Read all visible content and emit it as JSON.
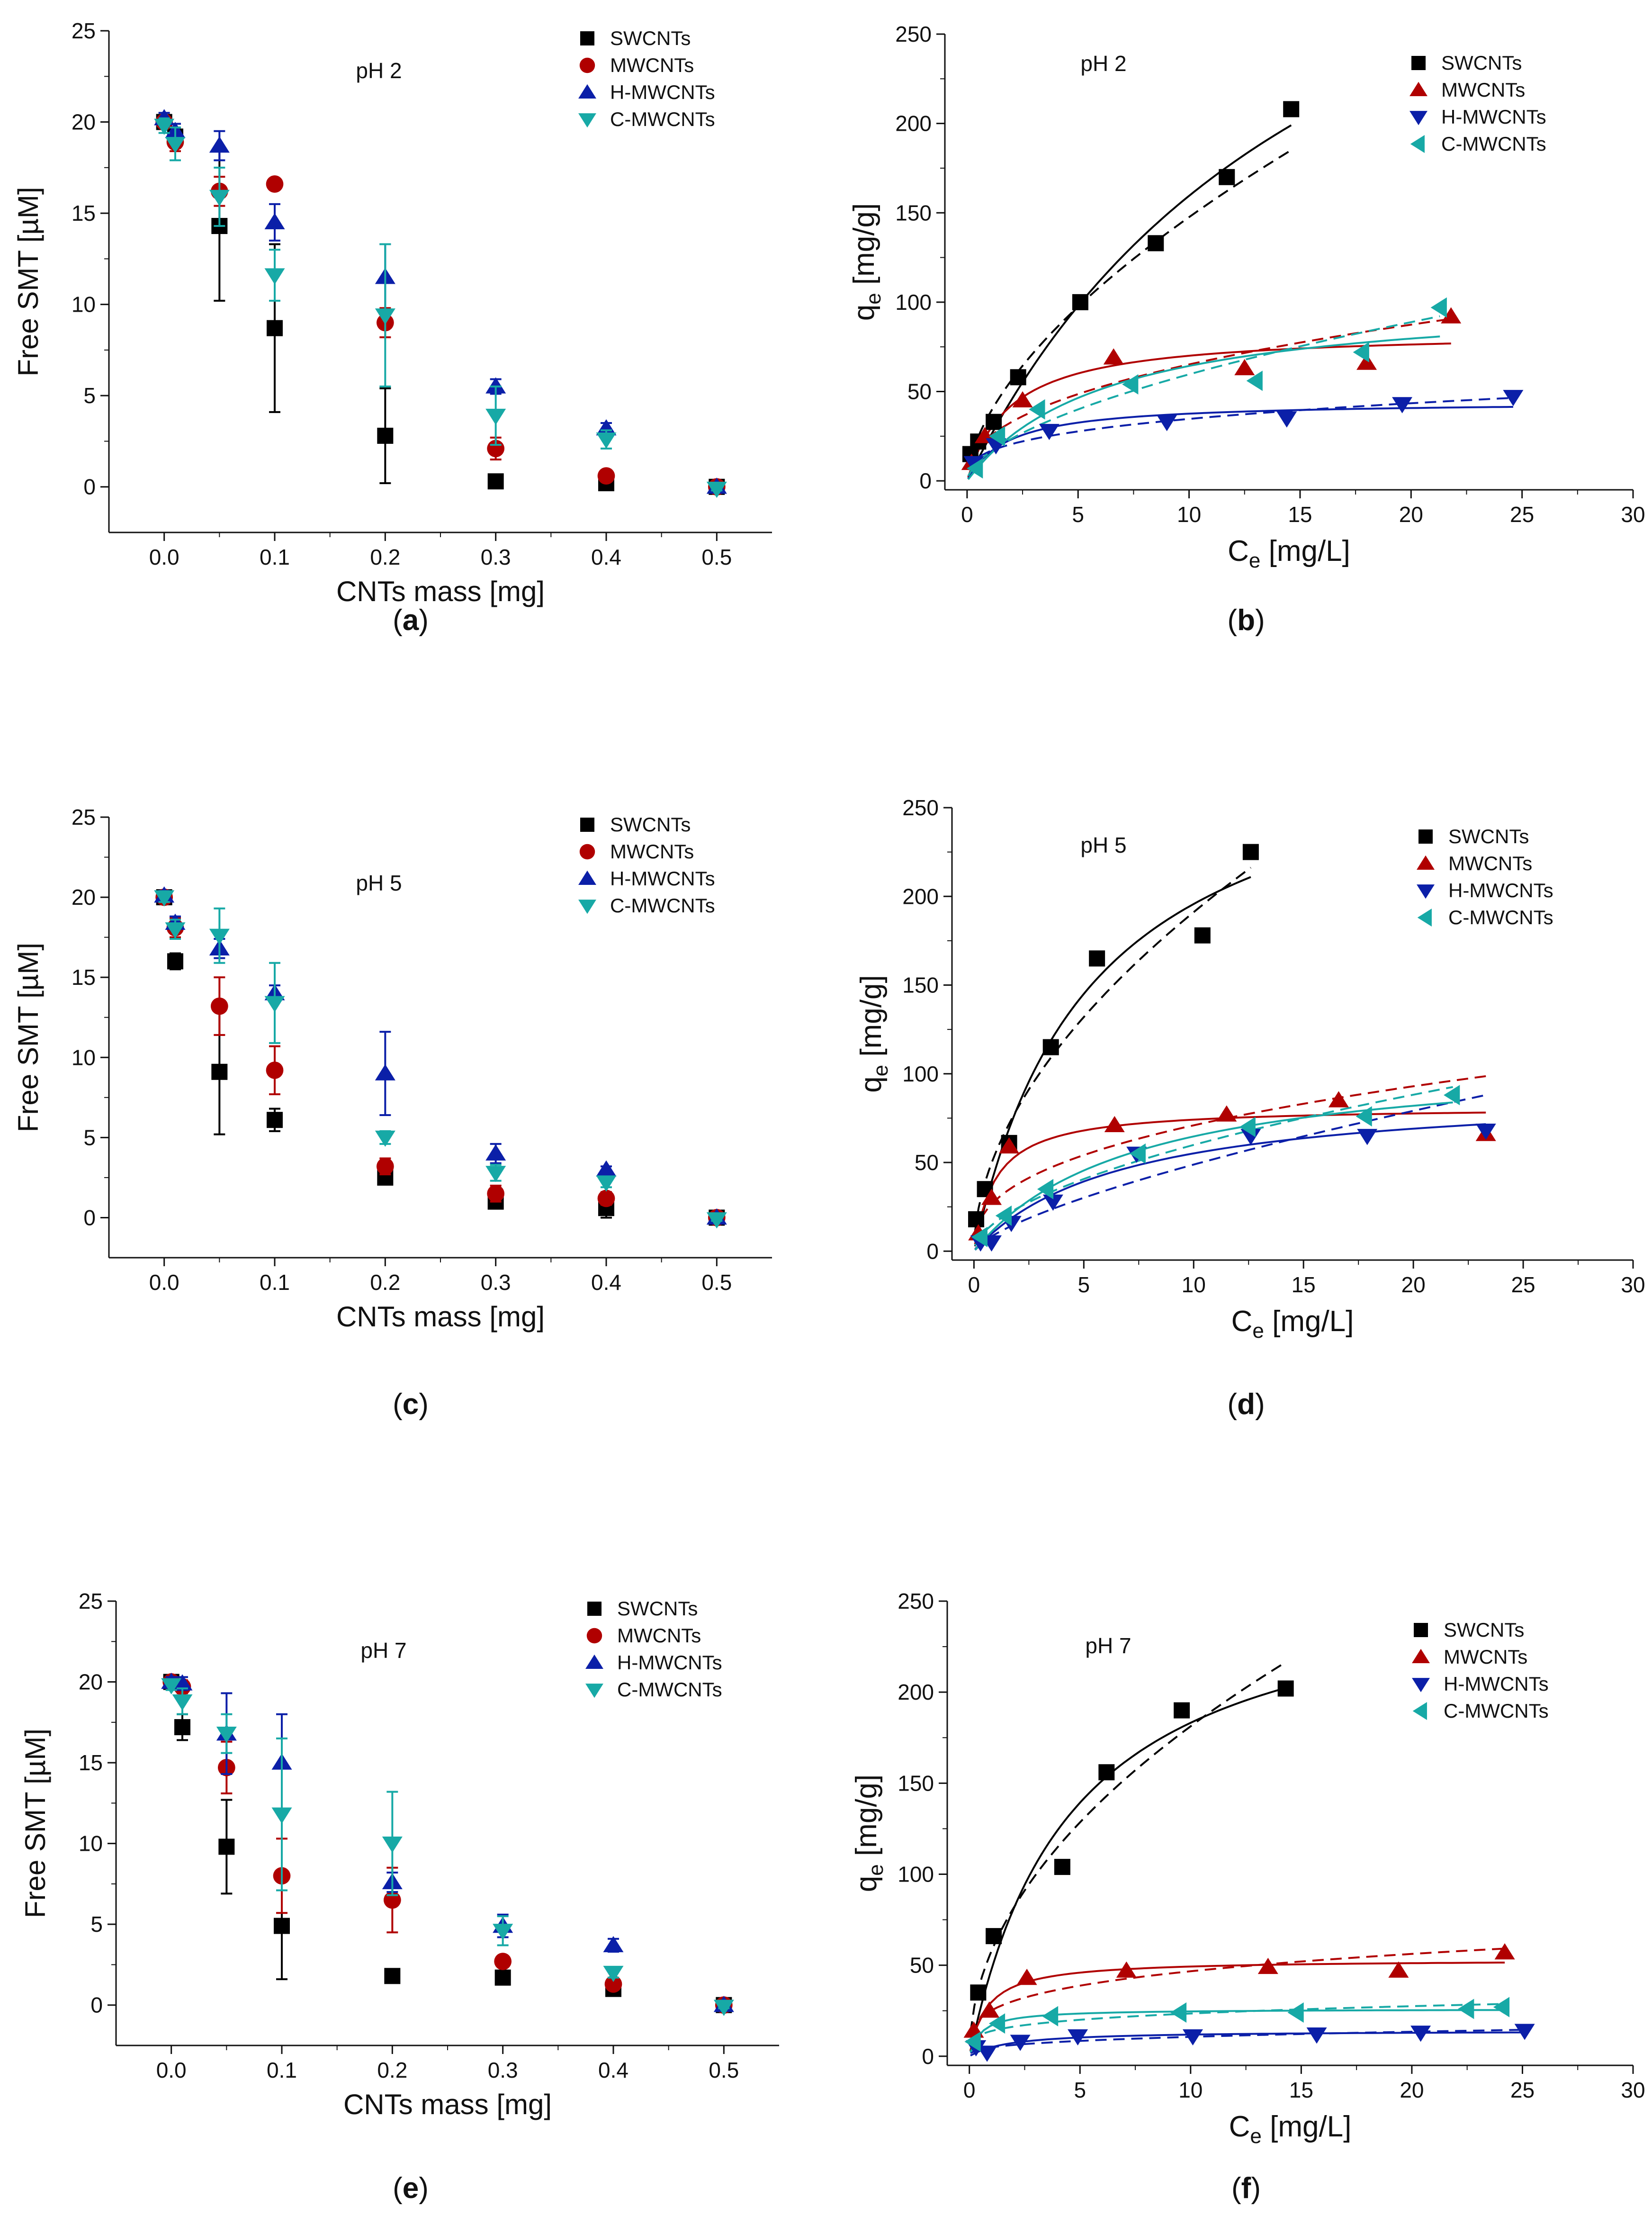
{
  "series_colors": {
    "SWCNTs": "#000000",
    "MWCNTs": "#b00000",
    "H-MWCNTs": "#0b1fa8",
    "C-MWCNTs": "#17a9a6"
  },
  "marker_shapes": {
    "SWCNTs": "square",
    "MWCNTs": "circle",
    "H-MWCNTs": "triangle-up",
    "C-MWCNTs": "triangle-down"
  },
  "marker_shapes_right": {
    "SWCNTs": "square",
    "MWCNTs": "triangle-up",
    "H-MWCNTs": "triangle-down",
    "C-MWCNTs": "triangle-left"
  },
  "chart_data": [
    {
      "panel": "a",
      "caption_letter": "a",
      "type": "scatter",
      "annotation": "pH 2",
      "xlabel": "CNTs mass [mg]",
      "ylabel": "Free SMT [µM]",
      "xlim": [
        -0.05,
        0.55
      ],
      "ylim": [
        -2.5,
        25
      ],
      "xticks": [
        0.0,
        0.1,
        0.2,
        0.3,
        0.4,
        0.5
      ],
      "xtick_labels": [
        "0.0",
        "0.1",
        "0.2",
        "0.3",
        "0.4",
        "0.5"
      ],
      "yticks": [
        0,
        5,
        10,
        15,
        20,
        25
      ],
      "ytick_labels": [
        "0",
        "5",
        "10",
        "15",
        "20",
        "25"
      ],
      "legend": [
        "SWCNTs",
        "MWCNTs",
        "H-MWCNTs",
        "C-MWCNTs"
      ],
      "series": [
        {
          "name": "SWCNTs",
          "x": [
            0,
            0.01,
            0.05,
            0.1,
            0.2,
            0.3,
            0.4,
            0.5
          ],
          "y": [
            20.0,
            19.2,
            14.3,
            8.7,
            2.8,
            0.3,
            0.2,
            0.0
          ],
          "err": [
            0.3,
            0.5,
            4.1,
            4.6,
            2.6,
            0.2,
            0.2,
            0.1
          ]
        },
        {
          "name": "MWCNTs",
          "x": [
            0,
            0.01,
            0.05,
            0.1,
            0.2,
            0.3,
            0.4,
            0.5
          ],
          "y": [
            20.0,
            18.9,
            16.2,
            16.6,
            9.0,
            2.1,
            0.6,
            0.0
          ],
          "err": [
            0.3,
            0.5,
            0.8,
            0.3,
            0.8,
            0.6,
            0.2,
            0.1
          ]
        },
        {
          "name": "H-MWCNTs",
          "x": [
            0,
            0.01,
            0.05,
            0.1,
            0.2,
            0.3,
            0.4,
            0.5
          ],
          "y": [
            20.2,
            19.5,
            18.7,
            14.5,
            11.5,
            5.5,
            3.2,
            0.0
          ],
          "err": [
            0.3,
            0.4,
            0.8,
            1.0,
            1.8,
            0.4,
            0.3,
            0.1
          ]
        },
        {
          "name": "C-MWCNTs",
          "x": [
            0,
            0.01,
            0.05,
            0.1,
            0.2,
            0.3,
            0.4,
            0.5
          ],
          "y": [
            19.8,
            18.8,
            15.9,
            11.6,
            9.4,
            3.9,
            2.6,
            -0.1
          ],
          "err": [
            0.4,
            0.9,
            1.6,
            1.4,
            3.9,
            1.6,
            0.5,
            0.1
          ]
        }
      ]
    },
    {
      "panel": "b",
      "caption_letter": "b",
      "type": "scatter",
      "annotation": "pH 2",
      "xlabel": "Ce [mg/L]",
      "ylabel": "qe [mg/g]",
      "xlim": [
        -1,
        30
      ],
      "ylim": [
        -5,
        250
      ],
      "xticks": [
        0,
        5,
        10,
        15,
        20,
        25,
        30
      ],
      "xtick_labels": [
        "0",
        "5",
        "10",
        "15",
        "20",
        "25",
        "30"
      ],
      "yticks": [
        0,
        50,
        100,
        150,
        200,
        250
      ],
      "ytick_labels": [
        "0",
        "50",
        "100",
        "150",
        "200",
        "250"
      ],
      "legend": [
        "SWCNTs",
        "MWCNTs",
        "H-MWCNTs",
        "C-MWCNTs"
      ],
      "series": [
        {
          "name": "SWCNTs",
          "x": [
            0.15,
            0.5,
            1.2,
            2.3,
            5.1,
            8.5,
            11.7,
            14.6
          ],
          "y": [
            15,
            22,
            33,
            58,
            100,
            133,
            170,
            208
          ],
          "solid_fit": [
            0,
            0.5,
            1,
            2,
            3,
            4,
            5,
            6,
            7,
            8,
            9,
            10,
            11,
            12,
            13,
            14,
            14.6
          ],
          "dashed_fit": [
            0,
            0.5,
            1,
            2,
            3,
            4,
            5,
            6,
            7,
            8,
            9,
            10,
            11,
            12,
            13,
            14,
            14.6
          ]
        },
        {
          "name": "MWCNTs",
          "x": [
            0.2,
            0.8,
            2.5,
            6.6,
            12.5,
            18.0,
            21.8
          ],
          "y": [
            10,
            25,
            45,
            69,
            63,
            66,
            92
          ]
        },
        {
          "name": "H-MWCNTs",
          "x": [
            0.3,
            1.3,
            3.7,
            9.0,
            14.4,
            19.6,
            24.6
          ],
          "y": [
            10,
            20,
            28,
            33,
            35,
            43,
            47
          ]
        },
        {
          "name": "C-MWCNTs",
          "x": [
            0.4,
            1.4,
            3.2,
            7.4,
            13.0,
            17.8,
            21.3
          ],
          "y": [
            7,
            25,
            40,
            54,
            56,
            72,
            97
          ]
        }
      ]
    },
    {
      "panel": "c",
      "caption_letter": "c",
      "type": "scatter",
      "annotation": "pH 5",
      "xlabel": "CNTs mass [mg]",
      "ylabel": "Free SMT [µM]",
      "xlim": [
        -0.05,
        0.55
      ],
      "ylim": [
        -2.5,
        25
      ],
      "xticks": [
        0.0,
        0.1,
        0.2,
        0.3,
        0.4,
        0.5
      ],
      "xtick_labels": [
        "0.0",
        "0.1",
        "0.2",
        "0.3",
        "0.4",
        "0.5"
      ],
      "yticks": [
        0,
        5,
        10,
        15,
        20,
        25
      ],
      "ytick_labels": [
        "0",
        "5",
        "10",
        "15",
        "20",
        "25"
      ],
      "legend": [
        "SWCNTs",
        "MWCNTs",
        "H-MWCNTs",
        "C-MWCNTs"
      ],
      "series": [
        {
          "name": "SWCNTs",
          "x": [
            0,
            0.01,
            0.05,
            0.1,
            0.2,
            0.3,
            0.4,
            0.5
          ],
          "y": [
            20.0,
            16.0,
            9.1,
            6.1,
            2.5,
            1.0,
            0.6,
            0.0
          ],
          "err": [
            0.3,
            0.5,
            3.9,
            0.7,
            0.3,
            0.2,
            0.6,
            0.1
          ]
        },
        {
          "name": "MWCNTs",
          "x": [
            0,
            0.01,
            0.05,
            0.1,
            0.2,
            0.3,
            0.4,
            0.5
          ],
          "y": [
            20.0,
            18.1,
            13.2,
            9.2,
            3.2,
            1.5,
            1.2,
            0.0
          ],
          "err": [
            0.3,
            0.6,
            1.8,
            1.5,
            0.5,
            0.5,
            0.4,
            0.1
          ]
        },
        {
          "name": "H-MWCNTs",
          "x": [
            0,
            0.01,
            0.05,
            0.1,
            0.2,
            0.3,
            0.4,
            0.5
          ],
          "y": [
            20.1,
            18.4,
            16.8,
            14.0,
            9.0,
            4.0,
            3.0,
            0.0
          ],
          "err": [
            0.3,
            0.4,
            0.6,
            0.5,
            2.6,
            0.6,
            0.2,
            0.1
          ]
        },
        {
          "name": "C-MWCNTs",
          "x": [
            0,
            0.01,
            0.05,
            0.1,
            0.2,
            0.3,
            0.4,
            0.5
          ],
          "y": [
            20.0,
            18.0,
            17.6,
            13.4,
            5.0,
            2.8,
            2.2,
            -0.1
          ],
          "err": [
            0.3,
            0.6,
            1.7,
            2.5,
            0.4,
            0.5,
            0.3,
            0.1
          ]
        }
      ]
    },
    {
      "panel": "d",
      "caption_letter": "d",
      "type": "scatter",
      "annotation": "pH 5",
      "xlabel": "Ce [mg/L]",
      "ylabel": "qe [mg/g]",
      "xlim": [
        -1,
        30
      ],
      "ylim": [
        -5,
        250
      ],
      "xticks": [
        0,
        5,
        10,
        15,
        20,
        25,
        30
      ],
      "xtick_labels": [
        "0",
        "5",
        "10",
        "15",
        "20",
        "25",
        "30"
      ],
      "yticks": [
        0,
        50,
        100,
        150,
        200,
        250
      ],
      "ytick_labels": [
        "0",
        "50",
        "100",
        "150",
        "200",
        "250"
      ],
      "legend": [
        "SWCNTs",
        "MWCNTs",
        "H-MWCNTs",
        "C-MWCNTs"
      ],
      "series": [
        {
          "name": "SWCNTs",
          "x": [
            0.1,
            0.5,
            1.6,
            3.5,
            5.6,
            10.4,
            12.6
          ],
          "y": [
            18,
            35,
            61,
            115,
            165,
            178,
            225
          ]
        },
        {
          "name": "MWCNTs",
          "x": [
            0.2,
            0.8,
            1.6,
            6.4,
            11.5,
            16.6,
            23.3
          ],
          "y": [
            10,
            30,
            59,
            71,
            77,
            85,
            66
          ]
        },
        {
          "name": "H-MWCNTs",
          "x": [
            0.3,
            0.8,
            1.7,
            3.6,
            7.4,
            12.6,
            17.9,
            23.3
          ],
          "y": [
            5,
            5,
            16,
            28,
            55,
            65,
            65,
            68
          ]
        },
        {
          "name": "C-MWCNTs",
          "x": [
            0.3,
            1.4,
            3.3,
            7.5,
            12.5,
            17.8,
            21.8
          ],
          "y": [
            8,
            20,
            35,
            55,
            70,
            76,
            88
          ]
        }
      ]
    },
    {
      "panel": "e",
      "caption_letter": "e",
      "type": "scatter",
      "annotation": "pH 7",
      "xlabel": "CNTs mass [mg]",
      "ylabel": "Free SMT [µM]",
      "xlim": [
        -0.05,
        0.55
      ],
      "ylim": [
        -2.5,
        25
      ],
      "xticks": [
        0.0,
        0.1,
        0.2,
        0.3,
        0.4,
        0.5
      ],
      "xtick_labels": [
        "0.0",
        "0.1",
        "0.2",
        "0.3",
        "0.4",
        "0.5"
      ],
      "yticks": [
        0,
        5,
        10,
        15,
        20,
        25
      ],
      "ytick_labels": [
        "0",
        "5",
        "10",
        "15",
        "20",
        "25"
      ],
      "legend": [
        "SWCNTs",
        "MWCNTs",
        "H-MWCNTs",
        "C-MWCNTs"
      ],
      "series": [
        {
          "name": "SWCNTs",
          "x": [
            0,
            0.01,
            0.05,
            0.1,
            0.2,
            0.3,
            0.4,
            0.5
          ],
          "y": [
            20.0,
            17.2,
            9.8,
            4.9,
            1.8,
            1.7,
            1.0,
            0.0
          ],
          "err": [
            0.3,
            0.8,
            2.9,
            3.3,
            0.2,
            0.2,
            0.3,
            0.1
          ]
        },
        {
          "name": "MWCNTs",
          "x": [
            0,
            0.01,
            0.05,
            0.1,
            0.2,
            0.3,
            0.4,
            0.5
          ],
          "y": [
            20.0,
            19.7,
            14.7,
            8.0,
            6.5,
            2.7,
            1.3,
            0.0
          ],
          "err": [
            0.3,
            0.4,
            1.6,
            2.3,
            2.0,
            0.3,
            0.3,
            0.1
          ]
        },
        {
          "name": "H-MWCNTs",
          "x": [
            0,
            0.01,
            0.05,
            0.1,
            0.2,
            0.3,
            0.4,
            0.5
          ],
          "y": [
            20.0,
            19.9,
            16.8,
            15.0,
            7.6,
            4.9,
            3.7,
            0.0
          ],
          "err": [
            0.3,
            0.4,
            2.5,
            3.0,
            0.6,
            0.7,
            0.4,
            0.1
          ]
        },
        {
          "name": "C-MWCNTs",
          "x": [
            0,
            0.01,
            0.05,
            0.1,
            0.2,
            0.3,
            0.4,
            0.5
          ],
          "y": [
            19.8,
            18.8,
            16.8,
            11.8,
            10.0,
            4.6,
            2.0,
            -0.1
          ],
          "err": [
            0.3,
            0.8,
            1.2,
            4.7,
            3.2,
            0.9,
            0.3,
            0.1
          ]
        }
      ]
    },
    {
      "panel": "f",
      "caption_letter": "f",
      "type": "scatter",
      "annotation": "pH 7",
      "xlabel": "Ce [mg/L]",
      "ylabel": "qe [mg/g]",
      "xlim": [
        -1,
        30
      ],
      "ylim": [
        -5,
        250
      ],
      "xticks": [
        0,
        5,
        10,
        15,
        20,
        25,
        30
      ],
      "xtick_labels": [
        "0",
        "5",
        "10",
        "15",
        "20",
        "25",
        "30"
      ],
      "yticks": [
        0,
        50,
        100,
        150,
        200,
        250
      ],
      "ytick_labels": [
        "0",
        "50",
        "100",
        "150",
        "200",
        "250"
      ],
      "legend": [
        "SWCNTs",
        "MWCNTs",
        "H-MWCNTs",
        "C-MWCNTs"
      ],
      "series": [
        {
          "name": "SWCNTs",
          "x": [
            0.4,
            1.1,
            4.2,
            6.2,
            9.6,
            14.3
          ],
          "y": [
            35,
            66,
            104,
            156,
            190,
            202
          ]
        },
        {
          "name": "MWCNTs",
          "x": [
            0.2,
            0.9,
            2.6,
            7.1,
            13.5,
            19.4,
            24.2
          ],
          "y": [
            14,
            25,
            43,
            47,
            49,
            47,
            57
          ]
        },
        {
          "name": "H-MWCNTs",
          "x": [
            0.3,
            0.8,
            2.3,
            4.9,
            10.1,
            15.7,
            20.4,
            25.1
          ],
          "y": [
            5,
            2,
            8,
            11,
            11,
            12,
            13,
            14
          ]
        },
        {
          "name": "C-MWCNTs",
          "x": [
            0.2,
            1.3,
            3.7,
            9.5,
            14.8,
            22.5,
            24.1
          ],
          "y": [
            8,
            18,
            22,
            24,
            24,
            26,
            27
          ]
        }
      ]
    }
  ]
}
